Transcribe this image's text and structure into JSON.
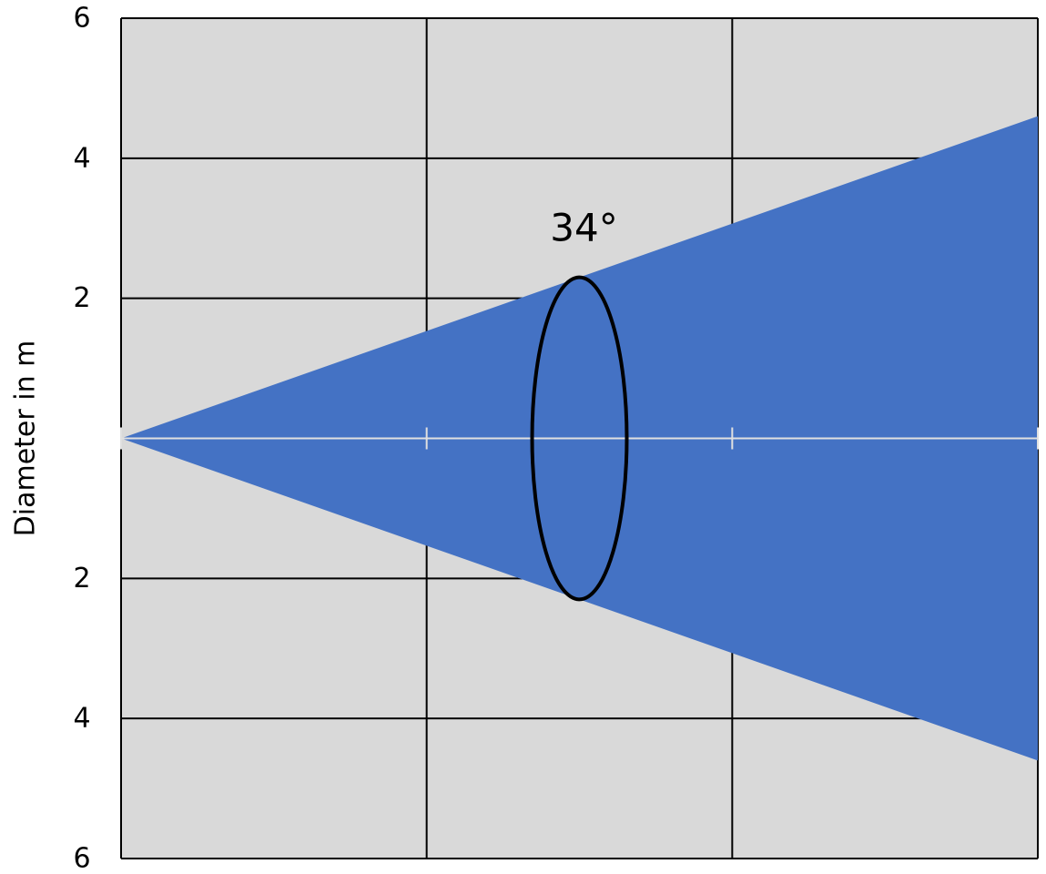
{
  "chart_data": {
    "type": "area",
    "title": "",
    "xlabel": "",
    "ylabel": "Diameter in m",
    "y_tick_labels": [
      "6",
      "4",
      "2",
      "2",
      "4",
      "6"
    ],
    "y_tick_values": [
      6,
      4,
      2,
      -2,
      -4,
      -6
    ],
    "ylim": [
      -6,
      6
    ],
    "xlim": [
      0,
      3
    ],
    "x_gridlines": [
      1,
      2,
      3
    ],
    "grid": true,
    "beam_angle_label": "34°",
    "beam": {
      "apex": [
        0,
        0
      ],
      "upper_edge": [
        3,
        4.6
      ],
      "lower_edge": [
        3,
        -4.6
      ],
      "angle_deg": 34
    },
    "angle_marker_x": 1.5,
    "colors": {
      "plot_background": "#d9d9d9",
      "beam_fill": "#4472c4",
      "grid": "#000000",
      "center_line": "#e0e0e0",
      "marker_outline": "#000000"
    }
  }
}
